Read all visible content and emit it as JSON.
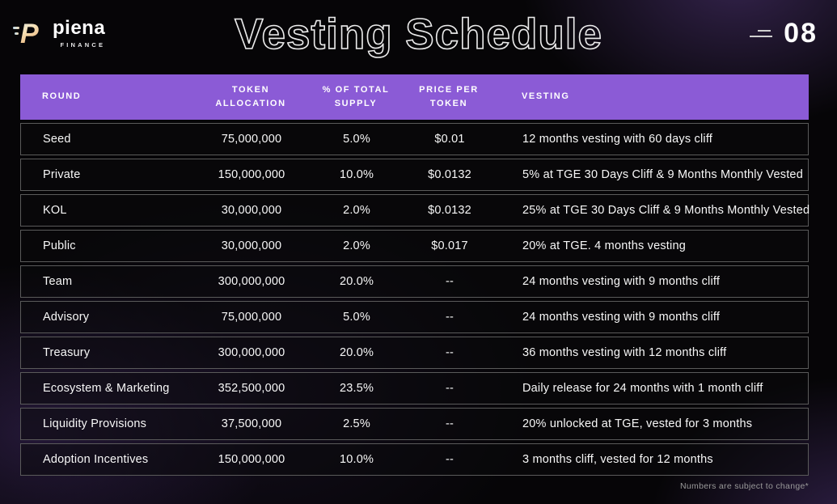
{
  "brand": {
    "name": "piena",
    "subtitle": "FINANCE",
    "icon_letter": "P"
  },
  "page": {
    "title": "Vesting Schedule",
    "number": "08",
    "footnote": "Numbers are subject to change*"
  },
  "colors": {
    "header_bg": "#8b5bd6",
    "background": "#060507",
    "glow_purple": "#6f42b8",
    "row_border": "#5a5a5a"
  },
  "table": {
    "header": {
      "round": "ROUND",
      "allocation": "TOKEN\nALLOCATION",
      "supply": "% OF TOTAL\nSUPPLY",
      "price": "PRICE PER\nTOKEN",
      "vesting": "VESTING"
    },
    "rows": [
      {
        "round": "Seed",
        "allocation": "75,000,000",
        "supply": "5.0%",
        "price": "$0.01",
        "vesting": "12 months vesting with 60 days cliff"
      },
      {
        "round": "Private",
        "allocation": "150,000,000",
        "supply": "10.0%",
        "price": "$0.0132",
        "vesting": "5% at TGE 30 Days Cliff & 9 Months Monthly Vested"
      },
      {
        "round": "KOL",
        "allocation": "30,000,000",
        "supply": "2.0%",
        "price": "$0.0132",
        "vesting": "25% at TGE 30 Days Cliff & 9 Months Monthly Vested"
      },
      {
        "round": "Public",
        "allocation": "30,000,000",
        "supply": "2.0%",
        "price": "$0.017",
        "vesting": "20% at TGE. 4 months vesting"
      },
      {
        "round": "Team",
        "allocation": "300,000,000",
        "supply": "20.0%",
        "price": "--",
        "vesting": "24 months vesting with 9 months cliff"
      },
      {
        "round": "Advisory",
        "allocation": "75,000,000",
        "supply": "5.0%",
        "price": "--",
        "vesting": "24 months vesting with 9 months cliff"
      },
      {
        "round": "Treasury",
        "allocation": "300,000,000",
        "supply": "20.0%",
        "price": "--",
        "vesting": "36 months vesting with 12 months cliff"
      },
      {
        "round": "Ecosystem & Marketing",
        "allocation": "352,500,000",
        "supply": "23.5%",
        "price": "--",
        "vesting": "Daily release for 24 months with 1 month cliff"
      },
      {
        "round": "Liquidity Provisions",
        "allocation": "37,500,000",
        "supply": "2.5%",
        "price": "--",
        "vesting": "20% unlocked at TGE, vested for 3 months"
      },
      {
        "round": "Adoption Incentives",
        "allocation": "150,000,000",
        "supply": "10.0%",
        "price": "--",
        "vesting": "3 months cliff, vested for 12 months"
      }
    ]
  }
}
